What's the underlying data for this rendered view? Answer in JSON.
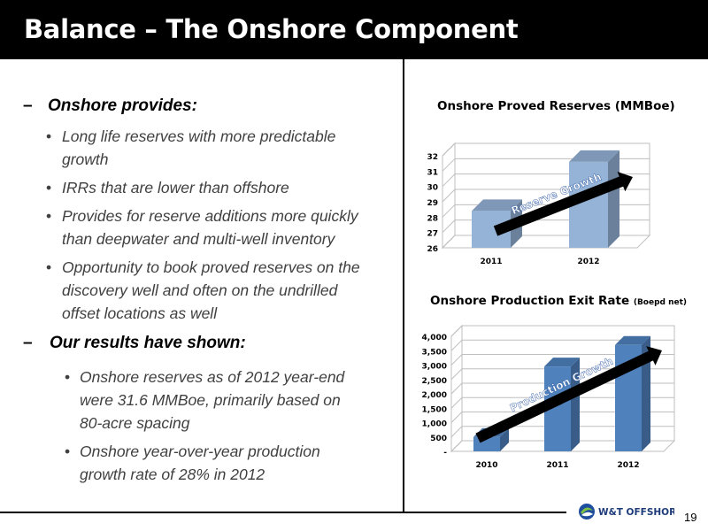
{
  "slide": {
    "title": "Balance – The Onshore Component",
    "page_number": "19",
    "logo_text": "W&T OFFSHORE"
  },
  "bullets": {
    "onshore_provides": {
      "heading": "Onshore provides:",
      "marker": "–",
      "items": [
        {
          "marker": "•",
          "lines": [
            "Long life reserves with more predictable",
            "growth"
          ]
        },
        {
          "marker": "•",
          "lines": [
            "IRRs that are lower than offshore"
          ]
        },
        {
          "marker": "•",
          "lines": [
            "Provides for reserve additions more quickly",
            "than deepwater and multi-well inventory"
          ]
        },
        {
          "marker": "•",
          "lines": [
            "Opportunity to book proved reserves on the",
            "discovery well and often on the  undrilled",
            "offset locations as well"
          ]
        }
      ]
    },
    "results": {
      "heading": "Our results have shown:",
      "marker": "–",
      "items": [
        {
          "marker": "•",
          "lines": [
            "Onshore reserves as of 2012 year-end",
            "were 31.6 MMBoe, primarily based on",
            "80-acre spacing"
          ]
        },
        {
          "marker": "•",
          "lines": [
            "Onshore year-over-year production",
            "growth rate of 28% in 2012"
          ]
        }
      ]
    }
  },
  "chart_data": [
    {
      "type": "bar",
      "title": "Onshore Proved Reserves (MMBoe)",
      "categories": [
        "2011",
        "2012"
      ],
      "values": [
        28.4,
        31.6
      ],
      "ylim": [
        26,
        32
      ],
      "yticks": [
        "26",
        "27",
        "28",
        "29",
        "30",
        "31",
        "32"
      ],
      "annotation": "Reserve Growth",
      "color": "#95B3D7",
      "grid": true
    },
    {
      "type": "bar",
      "title": "Onshore Production Exit Rate",
      "title_unit": "(Boepd net)",
      "categories": [
        "2010",
        "2011",
        "2012"
      ],
      "values": [
        500,
        2950,
        3700
      ],
      "ylim": [
        0,
        4000
      ],
      "yticks": [
        "-",
        "500",
        "1,000",
        "1,500",
        "2,000",
        "2,500",
        "3,000",
        "3,500",
        "4,000"
      ],
      "annotation": "Production Growth",
      "color": "#4F81BD",
      "grid": true
    }
  ]
}
